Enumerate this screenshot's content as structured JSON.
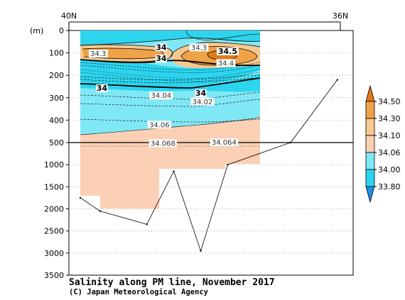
{
  "chart_data": {
    "type": "heatmap",
    "title": "Salinity along PM line, November 2017",
    "credit": "(C) Japan Meteorological Agency",
    "x_tick_labels": [
      "40N",
      "36N"
    ],
    "y_unit_label": "(m)",
    "y_ticks_upper": [
      0,
      100,
      200,
      300,
      400,
      500
    ],
    "y_ticks_lower": [
      1000,
      1500,
      2000,
      2500,
      3000,
      3500
    ],
    "y_break_depth": 500,
    "ylim": [
      3500,
      0
    ],
    "colorbar": {
      "levels": [
        "34.50",
        "34.30",
        "34.10",
        "34.06",
        "34.00",
        "33.80"
      ],
      "colors": {
        "above_34_50": "#e07b16",
        "34_30_to_34_50": "#f0a248",
        "34_10_to_34_30": "#f8c88e",
        "34_06_to_34_10": "#fbd0b4",
        "34_00_to_34_06": "#80e8f4",
        "33_80_to_34_00": "#2cd4ee",
        "below_33_80": "#1e8fe0"
      }
    },
    "contour_labels": [
      {
        "text": "34.3",
        "depth": 108,
        "lat_pos": 0.1
      },
      {
        "text": "34",
        "depth": 80,
        "lat_pos": 0.45
      },
      {
        "text": "34",
        "depth": 130,
        "lat_pos": 0.45
      },
      {
        "text": "34.3",
        "depth": 80,
        "lat_pos": 0.66
      },
      {
        "text": "34.5",
        "depth": 98,
        "lat_pos": 0.82
      },
      {
        "text": "34.4",
        "depth": 150,
        "lat_pos": 0.81
      },
      {
        "text": "34",
        "depth": 262,
        "lat_pos": 0.12
      },
      {
        "text": "34.04",
        "depth": 295,
        "lat_pos": 0.45
      },
      {
        "text": "34",
        "depth": 285,
        "lat_pos": 0.67
      },
      {
        "text": "34.02",
        "depth": 322,
        "lat_pos": 0.68
      },
      {
        "text": "34.06",
        "depth": 425,
        "lat_pos": 0.44
      },
      {
        "text": "34.068",
        "depth": 540,
        "lat_pos": 0.46
      },
      {
        "text": "34.064",
        "depth": 520,
        "lat_pos": 0.8
      }
    ],
    "bottom_depth_profile": [
      {
        "lat_pos": 0.0,
        "depth": 1750
      },
      {
        "lat_pos": 0.11,
        "depth": 2050
      },
      {
        "lat_pos": 0.37,
        "depth": 2350
      },
      {
        "lat_pos": 0.52,
        "depth": 1150
      },
      {
        "lat_pos": 0.67,
        "depth": 2950
      },
      {
        "lat_pos": 0.82,
        "depth": 1000
      },
      {
        "lat_pos": 1.17,
        "depth": 500
      },
      {
        "lat_pos": 1.43,
        "depth": 220
      }
    ],
    "grid": "dotted horizontal at y ticks",
    "legend": "right colorbar"
  }
}
